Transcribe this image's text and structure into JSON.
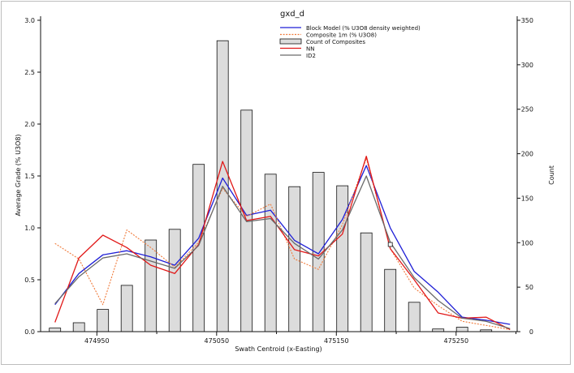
{
  "chart_data": {
    "type": "line",
    "title": "gxd_d",
    "xlabel": "Swath Centroid (x-Easting)",
    "ylabel": "Average Grade (% U3O8)",
    "y2label": "Count",
    "x_ticks": [
      474950,
      475050,
      475150,
      475250
    ],
    "y_ticks": [
      "0.0",
      "0.5",
      "1.0",
      "1.5",
      "2.0",
      "2.5",
      "3.0"
    ],
    "y2_ticks": [
      0,
      50,
      100,
      150,
      200,
      250,
      300,
      350
    ],
    "xlim": [
      474903,
      475301
    ],
    "ylim": [
      0,
      3.0
    ],
    "y2lim": [
      0,
      350
    ],
    "grid": false,
    "legend_placement": "top-center",
    "x": [
      474915,
      474935,
      474955,
      474975,
      474995,
      475015,
      475035,
      475055,
      475075,
      475095,
      475115,
      475135,
      475155,
      475175,
      475195,
      475215,
      475235,
      475255,
      475275,
      475295
    ],
    "series": [
      {
        "name": "Block Model (% U3O8 density weighted)",
        "kind": "line",
        "color": "#1f1fd6",
        "values": [
          0.26,
          0.56,
          0.74,
          0.78,
          0.72,
          0.64,
          0.9,
          1.48,
          1.12,
          1.17,
          0.88,
          0.75,
          1.08,
          1.6,
          1.0,
          0.58,
          0.38,
          0.14,
          0.11,
          0.07
        ]
      },
      {
        "name": "Composite 1m (% U3O8)",
        "kind": "dotted-line",
        "color": "#f07a3a",
        "values": [
          0.85,
          0.7,
          0.26,
          0.98,
          0.81,
          0.62,
          0.86,
          1.38,
          1.11,
          1.23,
          0.7,
          0.6,
          1.03,
          1.67,
          0.8,
          0.42,
          0.25,
          0.1,
          0.06,
          0.02
        ]
      },
      {
        "name": "Count of Composites",
        "kind": "bar",
        "axis": "right",
        "color": "#dcdcdc",
        "values": [
          4,
          10,
          25,
          52,
          103,
          115,
          188,
          327,
          249,
          177,
          163,
          179,
          164,
          111,
          70,
          33,
          3,
          5,
          2,
          0
        ]
      },
      {
        "name": "NN",
        "kind": "line",
        "color": "#e11818",
        "values": [
          0.09,
          0.71,
          0.93,
          0.81,
          0.64,
          0.56,
          0.84,
          1.64,
          1.07,
          1.11,
          0.79,
          0.73,
          0.94,
          1.69,
          0.8,
          0.5,
          0.18,
          0.13,
          0.14,
          0.02
        ]
      },
      {
        "name": "ID2",
        "kind": "line",
        "color": "#6a6a6a",
        "values": [
          0.27,
          0.53,
          0.71,
          0.75,
          0.68,
          0.61,
          0.83,
          1.4,
          1.06,
          1.09,
          0.85,
          0.7,
          0.98,
          1.5,
          0.86,
          0.52,
          0.3,
          0.13,
          0.1,
          0.03
        ]
      }
    ],
    "outlier_points": [
      {
        "x": 475195,
        "y2": 98
      }
    ]
  }
}
